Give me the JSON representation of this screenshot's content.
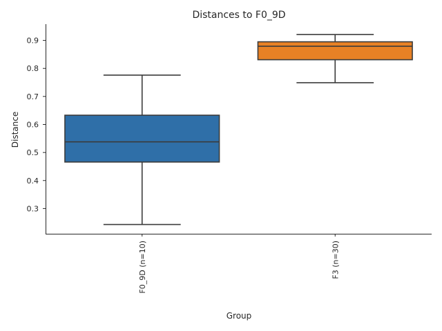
{
  "chart_data": {
    "type": "box",
    "title": "Distances to F0_9D",
    "xlabel": "Group",
    "ylabel": "Distance",
    "ylim": [
      0.21,
      0.958
    ],
    "yticks": [
      0.3,
      0.4,
      0.5,
      0.6,
      0.7,
      0.8,
      0.9
    ],
    "grid": false,
    "categories": [
      "F0_9D (n=10)",
      "F3 (n=30)"
    ],
    "series": [
      {
        "category": "F0_9D (n=10)",
        "color": "#2f6fa8",
        "min": 0.243,
        "q1": 0.466,
        "median": 0.538,
        "q3": 0.633,
        "max": 0.776
      },
      {
        "category": "F3 (n=30)",
        "color": "#e88125",
        "min": 0.749,
        "q1": 0.831,
        "median": 0.879,
        "q3": 0.895,
        "max": 0.921
      }
    ]
  }
}
